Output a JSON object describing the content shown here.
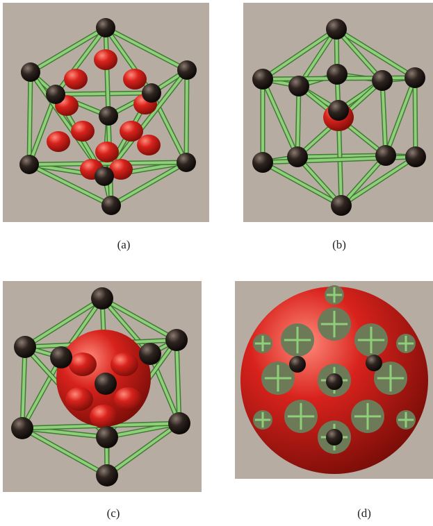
{
  "figure": {
    "panels": [
      {
        "id": "a",
        "caption": "(a)"
      },
      {
        "id": "b",
        "caption": "(b)"
      },
      {
        "id": "c",
        "caption": "(c)"
      },
      {
        "id": "d",
        "caption": "(d)"
      }
    ]
  },
  "colors": {
    "background": "#b7aca1",
    "rod": "#8fcf7a",
    "rod_shadow": "#3f7a35",
    "atom": "#2e2420",
    "density": "#d8221c"
  }
}
